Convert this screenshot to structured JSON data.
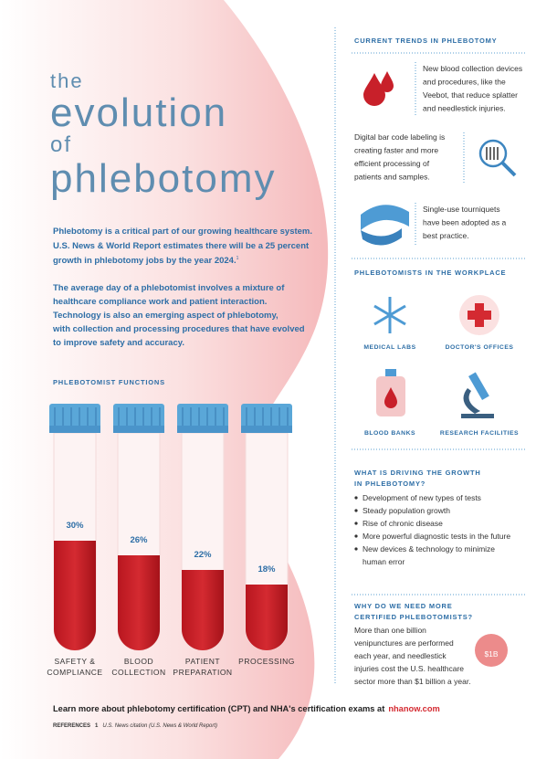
{
  "title": {
    "line1": "the",
    "line2": "evolution",
    "line3": "of",
    "line4": "phlebotomy"
  },
  "intro": {
    "paragraph1": [
      "Phlebotomy is a critical part of our growing healthcare system.",
      "U.S. News & World Report estimates there will be a 25 percent",
      "growth in phlebotomy jobs by the year 2024."
    ],
    "footnote_ref": "1",
    "paragraph2": [
      "The average day of a phlebotomist involves a mixture of",
      "healthcare compliance work and patient interaction.",
      "Technology is also an emerging aspect of phlebotomy,",
      "with collection and processing procedures that have evolved",
      "to improve safety and accuracy."
    ]
  },
  "functions": {
    "heading": "PHLEBOTOMIST FUNCTIONS",
    "items": [
      {
        "label": [
          "SAFETY &",
          "COMPLIANCE"
        ],
        "value": 30,
        "value_label": "30%"
      },
      {
        "label": [
          "BLOOD",
          "COLLECTION"
        ],
        "value": 26,
        "value_label": "26%"
      },
      {
        "label": [
          "PATIENT",
          "PREPARATION"
        ],
        "value": 22,
        "value_label": "22%"
      },
      {
        "label": [
          "PROCESSING"
        ],
        "value": 18,
        "value_label": "18%"
      }
    ]
  },
  "trends": {
    "heading": "CURRENT TRENDS IN PHLEBOTOMY",
    "items": [
      [
        "New blood collection devices",
        "and procedures, like the",
        "Veebot, that reduce splatter",
        "and needlestick injuries."
      ],
      [
        "Digital bar code labeling is",
        "creating faster and more",
        "efficient processing of",
        "patients and samples."
      ],
      [
        "Single-use tourniquets",
        "have been adopted as a",
        "best practice."
      ]
    ]
  },
  "workplace": {
    "heading": "PHLEBOTOMISTS IN THE WORKPLACE",
    "items": [
      "MEDICAL LABS",
      "DOCTOR'S OFFICES",
      "BLOOD BANKS",
      "RESEARCH FACILITIES"
    ]
  },
  "growth": {
    "heading": [
      "WHAT IS DRIVING THE GROWTH",
      "IN PHLEBOTOMY?"
    ],
    "bullets": [
      [
        "Development of new types of tests"
      ],
      [
        "Steady population growth"
      ],
      [
        "Rise of chronic disease"
      ],
      [
        "More powerful diagnostic tests in the future"
      ],
      [
        "New devices & technology to minimize",
        "human error"
      ]
    ]
  },
  "need": {
    "heading": [
      "WHY DO WE NEED MORE",
      "CERTIFIED PHLEBOTOMISTS?"
    ],
    "text": [
      "More than one billion",
      "venipunctures are performed",
      "each year, and needlestick",
      "injuries cost the U.S. healthcare",
      "sector more than $1 billion a year."
    ],
    "icon_text": "$1B"
  },
  "footer": {
    "cta": "Learn more about phlebotomy certification (CPT) and NHA's certification exams at",
    "link": "nhanow.com",
    "references_label": "REFERENCES",
    "reference_number": "1",
    "reference_text": "U.S. News citation (U.S. News & World Report)"
  }
}
